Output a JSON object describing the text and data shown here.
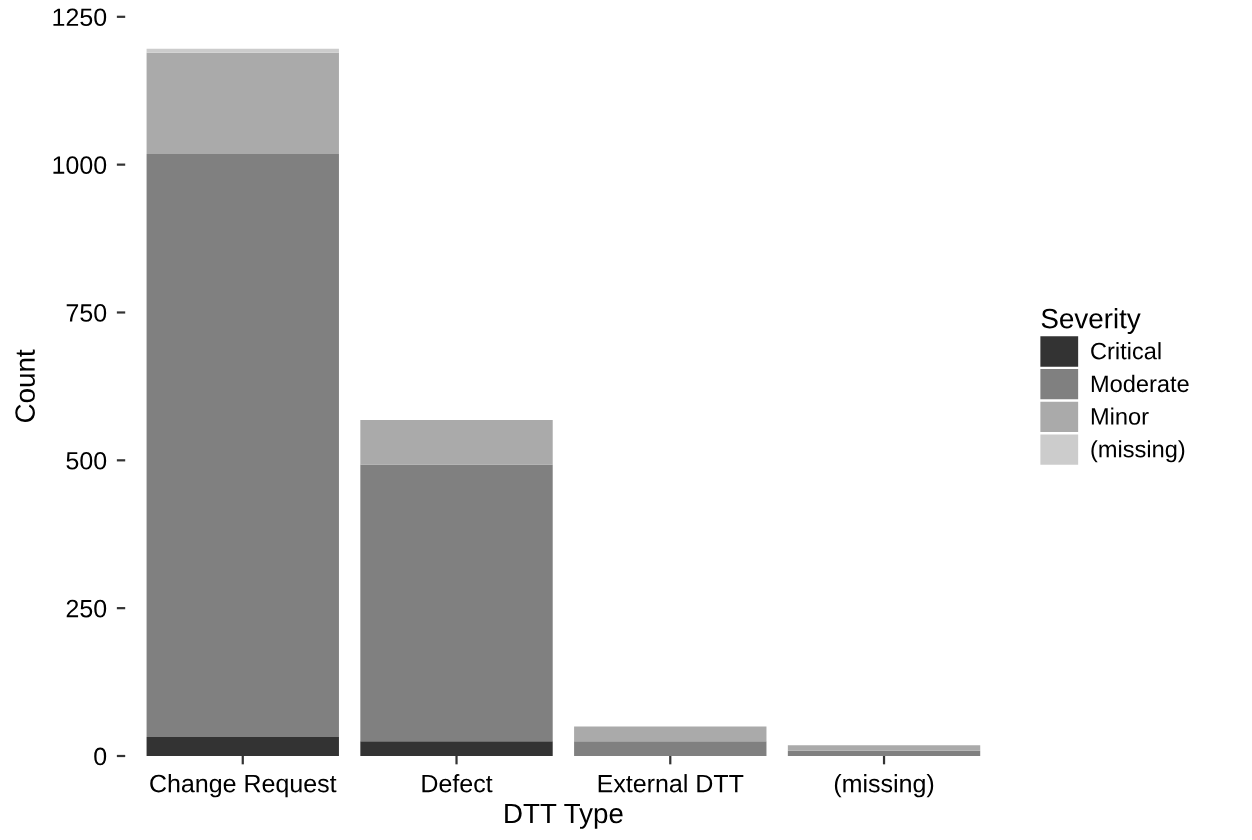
{
  "chart_data": {
    "type": "bar",
    "stacked": true,
    "xlabel": "DTT Type",
    "ylabel": "Count",
    "legend_title": "Severity",
    "legend": "right",
    "grid": false,
    "categories": [
      "Change Request",
      "Defect",
      "External DTT",
      "(missing)"
    ],
    "ylim": [
      0,
      1250
    ],
    "yticks": [
      0,
      250,
      500,
      750,
      1000,
      1250
    ],
    "series": [
      {
        "name": "Critical",
        "color": "#333333",
        "values": [
          32,
          25,
          0,
          0
        ]
      },
      {
        "name": "Moderate",
        "color": "#808080",
        "values": [
          986,
          468,
          25,
          9
        ]
      },
      {
        "name": "Minor",
        "color": "#aaaaaa",
        "values": [
          171,
          75,
          25,
          9
        ]
      },
      {
        "name": "(missing)",
        "color": "#cccccc",
        "values": [
          7,
          0,
          0,
          null
        ]
      }
    ]
  }
}
